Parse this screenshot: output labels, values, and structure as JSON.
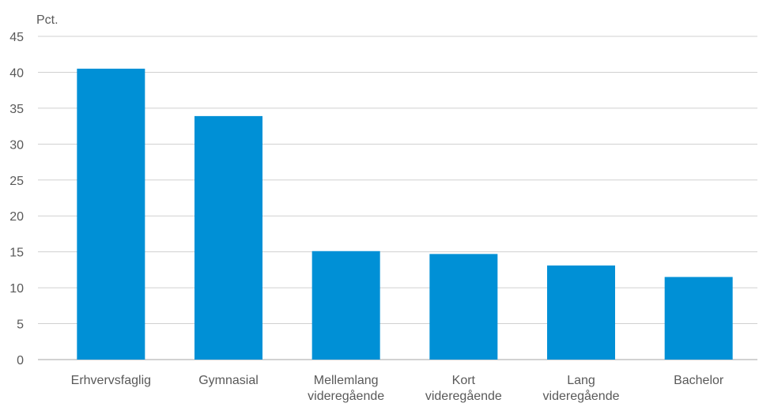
{
  "chart_data": {
    "type": "bar",
    "ylabel": "Pct.",
    "xlabel": "",
    "title": "",
    "categories": [
      [
        "Erhvervsfaglig"
      ],
      [
        "Gymnasial"
      ],
      [
        "Mellemlang",
        "videregående"
      ],
      [
        "Kort",
        "videregående"
      ],
      [
        "Lang",
        "videregående"
      ],
      [
        "Bachelor"
      ]
    ],
    "values": [
      40.5,
      33.9,
      15.1,
      14.7,
      13.1,
      11.5
    ],
    "ylim": [
      0,
      45
    ],
    "yticks": [
      0,
      5,
      10,
      15,
      20,
      25,
      30,
      35,
      40,
      45
    ],
    "grid": true,
    "bar_color": "#0090d6",
    "legend": false
  }
}
